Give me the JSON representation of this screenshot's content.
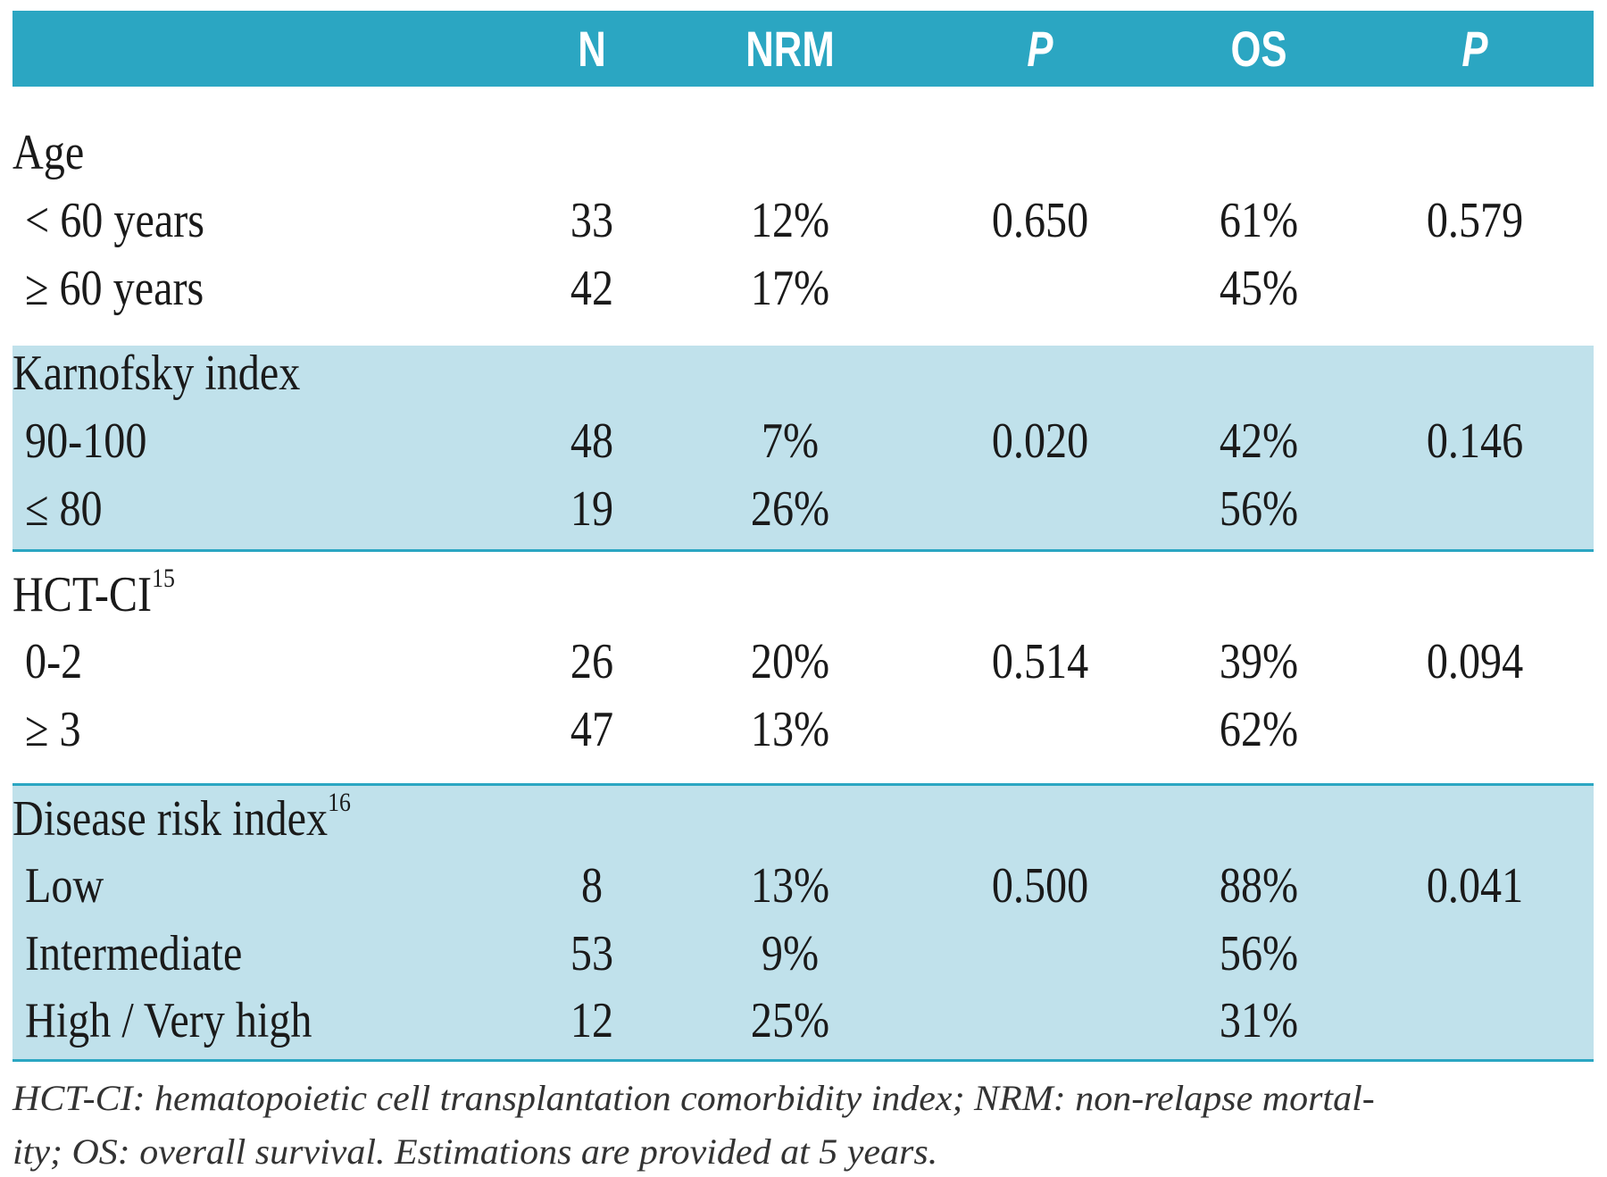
{
  "colors": {
    "header": "#2ba6c2",
    "band": "#c0e1eb"
  },
  "headers": [
    "N",
    "NRM",
    "P",
    "OS",
    "P"
  ],
  "groups": [
    {
      "title": "Age",
      "sup": "",
      "shaded": false,
      "rows": [
        {
          "label": "< 60 years",
          "n": "33",
          "nrm": "12%",
          "p_nrm": "0.650",
          "os": "61%",
          "p_os": "0.579"
        },
        {
          "label": "≥ 60 years",
          "n": "42",
          "nrm": "17%",
          "p_nrm": "",
          "os": "45%",
          "p_os": ""
        }
      ]
    },
    {
      "title": "Karnofsky index",
      "sup": "",
      "shaded": true,
      "rows": [
        {
          "label": "90-100",
          "n": "48",
          "nrm": "7%",
          "p_nrm": "0.020",
          "os": "42%",
          "p_os": "0.146"
        },
        {
          "label": "≤ 80",
          "n": "19",
          "nrm": "26%",
          "p_nrm": "",
          "os": "56%",
          "p_os": ""
        }
      ]
    },
    {
      "title": "HCT-CI",
      "sup": "15",
      "shaded": false,
      "rows": [
        {
          "label": "0-2",
          "n": "26",
          "nrm": "20%",
          "p_nrm": "0.514",
          "os": "39%",
          "p_os": "0.094"
        },
        {
          "label": "≥ 3",
          "n": "47",
          "nrm": "13%",
          "p_nrm": "",
          "os": "62%",
          "p_os": ""
        }
      ]
    },
    {
      "title": "Disease risk index",
      "sup": "16",
      "shaded": true,
      "rows": [
        {
          "label": "Low",
          "n": "8",
          "nrm": "13%",
          "p_nrm": "0.500",
          "os": "88%",
          "p_os": "0.041"
        },
        {
          "label": "Intermediate",
          "n": "53",
          "nrm": "9%",
          "p_nrm": "",
          "os": "56%",
          "p_os": ""
        },
        {
          "label": "High / Very high",
          "n": "12",
          "nrm": "25%",
          "p_nrm": "",
          "os": "31%",
          "p_os": ""
        }
      ]
    }
  ],
  "footnote": {
    "line1": "HCT-CI: hematopoietic cell transplantation comorbidity index; NRM: non-relapse mortal-",
    "line2": "ity; OS: overall survival. Estimations are provided at 5 years."
  }
}
